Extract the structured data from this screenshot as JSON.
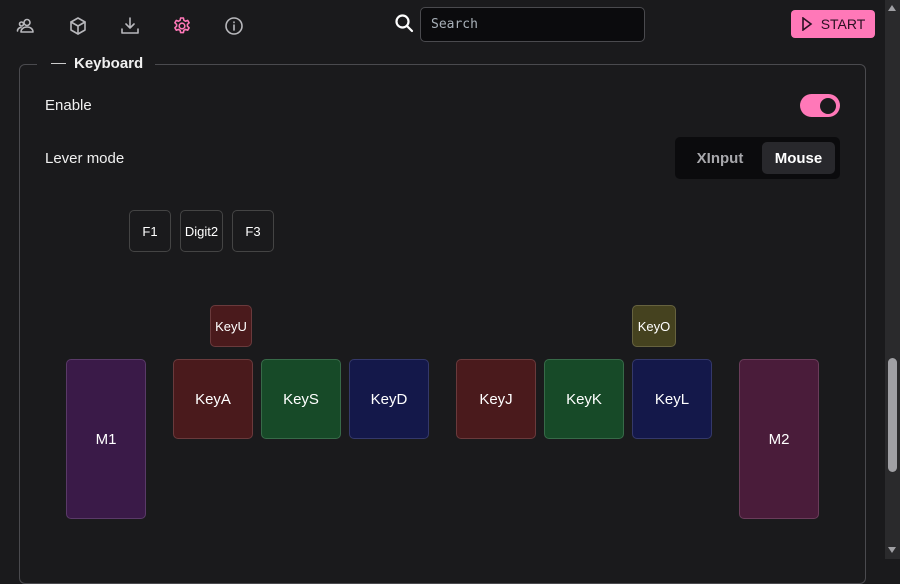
{
  "toolbar": {
    "icons": [
      "users-icon",
      "box-icon",
      "download-icon",
      "settings-icon",
      "info-icon"
    ],
    "active_icon": "settings-icon",
    "search_placeholder": "Search",
    "search_value": "",
    "start_label": "START"
  },
  "colors": {
    "accent": "#ff78b8",
    "background": "#1a1a1c"
  },
  "keyboard": {
    "title": "Keyboard",
    "enable_label": "Enable",
    "enabled": true,
    "lever_mode_label": "Lever mode",
    "lever_mode_options": [
      "XInput",
      "Mouse"
    ],
    "lever_mode_selected": "Mouse",
    "keys": {
      "f1": "F1",
      "digit2": "Digit2",
      "f3": "F3",
      "keyu": "KeyU",
      "keyo": "KeyO",
      "keya": "KeyA",
      "keys": "KeyS",
      "keyd": "KeyD",
      "keyj": "KeyJ",
      "keyk": "KeyK",
      "keyl": "KeyL",
      "m1": "M1",
      "m2": "M2"
    },
    "key_colors": {
      "red": "#4a1a1c",
      "green": "#174a28",
      "blue": "#14184a",
      "purple": "#3a1a48",
      "magenta": "#4a1c3a",
      "olive": "#45421f"
    }
  }
}
